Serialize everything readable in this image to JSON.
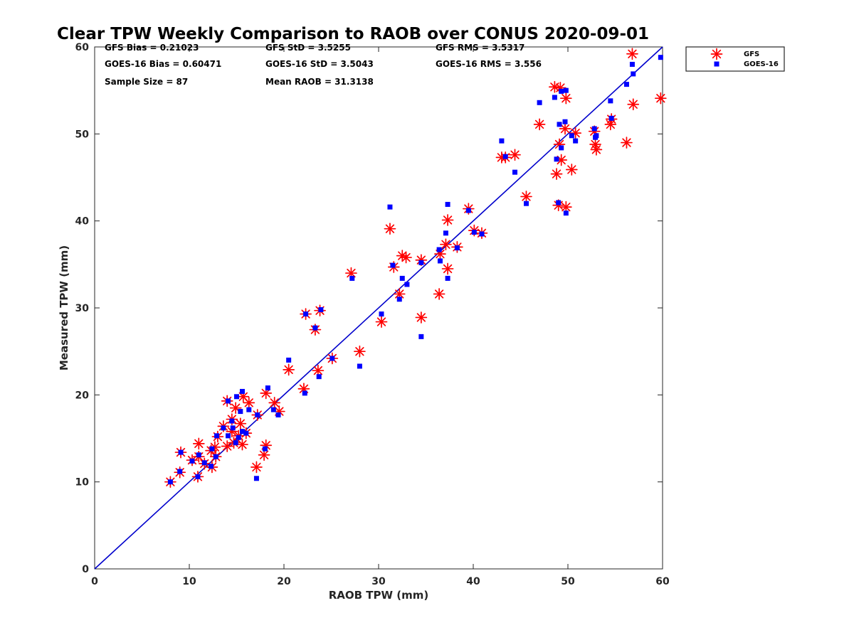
{
  "chart_data": {
    "type": "scatter",
    "title": "Clear TPW Weekly Comparison to RAOB over CONUS 2020-09-01",
    "xlabel": "RAOB TPW (mm)",
    "ylabel": "Measured TPW (mm)",
    "xlim": [
      0,
      60
    ],
    "ylim": [
      0,
      60
    ],
    "xticks": [
      "0",
      "10",
      "20",
      "30",
      "40",
      "50",
      "60"
    ],
    "yticks": [
      "0",
      "10",
      "20",
      "30",
      "40",
      "50",
      "60"
    ],
    "grid": false,
    "legend_position": "outside-top-right",
    "reference_line": {
      "x": [
        0,
        60
      ],
      "y": [
        0,
        60
      ],
      "color": "#0000cc"
    },
    "stats": [
      "GFS Bias = 0.21023",
      "GFS StD = 3.5255",
      "GFS RMS = 3.5317",
      "GOES-16 Bias = 0.60471",
      "GOES-16 StD = 3.5043",
      "GOES-16 RMS = 3.556",
      "Sample Size = 87",
      "Mean RAOB = 31.3138"
    ],
    "series": [
      {
        "name": "GFS",
        "marker": "asterisk",
        "color": "#ff0000",
        "points": [
          [
            8.0,
            10.0
          ],
          [
            9.0,
            11.1
          ],
          [
            9.1,
            13.4
          ],
          [
            10.3,
            12.5
          ],
          [
            10.9,
            10.6
          ],
          [
            11.0,
            14.4
          ],
          [
            11.0,
            12.9
          ],
          [
            11.6,
            12.1
          ],
          [
            12.3,
            13.6
          ],
          [
            12.4,
            11.7
          ],
          [
            12.7,
            14.0
          ],
          [
            12.8,
            12.9
          ],
          [
            13.0,
            15.2
          ],
          [
            13.6,
            16.4
          ],
          [
            14.0,
            14.1
          ],
          [
            14.0,
            19.3
          ],
          [
            14.5,
            17.2
          ],
          [
            14.5,
            15.8
          ],
          [
            14.7,
            14.5
          ],
          [
            14.9,
            18.5
          ],
          [
            15.2,
            15.3
          ],
          [
            15.4,
            16.7
          ],
          [
            15.6,
            14.3
          ],
          [
            15.7,
            19.8
          ],
          [
            16.0,
            15.6
          ],
          [
            16.3,
            19.1
          ],
          [
            17.1,
            11.7
          ],
          [
            17.2,
            17.7
          ],
          [
            17.9,
            13.1
          ],
          [
            18.1,
            14.2
          ],
          [
            18.1,
            20.2
          ],
          [
            19.0,
            19.1
          ],
          [
            19.5,
            18.1
          ],
          [
            20.5,
            22.9
          ],
          [
            22.1,
            20.7
          ],
          [
            22.3,
            29.3
          ],
          [
            23.3,
            27.5
          ],
          [
            23.6,
            22.8
          ],
          [
            23.8,
            29.7
          ],
          [
            25.1,
            24.2
          ],
          [
            27.1,
            34.0
          ],
          [
            28.0,
            25.0
          ],
          [
            30.3,
            28.4
          ],
          [
            31.2,
            39.1
          ],
          [
            31.6,
            34.7
          ],
          [
            32.2,
            31.6
          ],
          [
            32.5,
            36.0
          ],
          [
            32.9,
            35.8
          ],
          [
            34.5,
            35.5
          ],
          [
            34.5,
            28.9
          ],
          [
            36.4,
            31.6
          ],
          [
            36.5,
            36.2
          ],
          [
            37.1,
            37.3
          ],
          [
            37.3,
            34.5
          ],
          [
            37.3,
            40.1
          ],
          [
            38.3,
            37.0
          ],
          [
            39.5,
            41.4
          ],
          [
            40.1,
            38.9
          ],
          [
            40.9,
            38.6
          ],
          [
            43.0,
            47.3
          ],
          [
            43.4,
            47.3
          ],
          [
            44.4,
            47.6
          ],
          [
            45.6,
            42.8
          ],
          [
            47.0,
            51.1
          ],
          [
            48.6,
            55.4
          ],
          [
            48.8,
            45.4
          ],
          [
            49.0,
            41.8
          ],
          [
            49.1,
            48.8
          ],
          [
            49.2,
            55.3
          ],
          [
            49.3,
            47.0
          ],
          [
            49.7,
            50.6
          ],
          [
            49.8,
            41.6
          ],
          [
            49.8,
            54.1
          ],
          [
            50.4,
            45.9
          ],
          [
            50.8,
            50.1
          ],
          [
            52.8,
            50.3
          ],
          [
            52.9,
            48.8
          ],
          [
            53.0,
            48.2
          ],
          [
            54.5,
            51.1
          ],
          [
            54.6,
            51.7
          ],
          [
            56.2,
            49.0
          ],
          [
            56.8,
            59.2
          ],
          [
            56.9,
            53.4
          ],
          [
            59.8,
            54.1
          ]
        ]
      },
      {
        "name": "GOES-16",
        "marker": "square",
        "color": "#0000ff",
        "points": [
          [
            8.0,
            10.0
          ],
          [
            9.0,
            11.2
          ],
          [
            9.1,
            13.4
          ],
          [
            10.3,
            12.4
          ],
          [
            10.9,
            10.6
          ],
          [
            11.0,
            13.1
          ],
          [
            11.6,
            12.2
          ],
          [
            12.3,
            11.8
          ],
          [
            12.4,
            13.8
          ],
          [
            12.8,
            12.9
          ],
          [
            12.9,
            15.3
          ],
          [
            13.6,
            16.2
          ],
          [
            14.1,
            15.3
          ],
          [
            14.1,
            19.3
          ],
          [
            14.5,
            17.0
          ],
          [
            14.6,
            16.2
          ],
          [
            14.9,
            14.5
          ],
          [
            15.0,
            19.8
          ],
          [
            15.2,
            15.1
          ],
          [
            15.4,
            18.1
          ],
          [
            15.6,
            20.4
          ],
          [
            15.6,
            15.8
          ],
          [
            16.0,
            15.6
          ],
          [
            16.3,
            18.3
          ],
          [
            17.1,
            10.4
          ],
          [
            17.2,
            17.7
          ],
          [
            18.0,
            13.8
          ],
          [
            18.3,
            20.8
          ],
          [
            18.9,
            18.3
          ],
          [
            19.4,
            17.7
          ],
          [
            20.5,
            24.0
          ],
          [
            22.2,
            20.2
          ],
          [
            22.3,
            29.3
          ],
          [
            23.3,
            27.7
          ],
          [
            23.7,
            22.1
          ],
          [
            23.9,
            29.8
          ],
          [
            25.1,
            24.2
          ],
          [
            27.2,
            33.4
          ],
          [
            28.0,
            23.3
          ],
          [
            30.3,
            29.3
          ],
          [
            31.2,
            41.6
          ],
          [
            31.5,
            34.9
          ],
          [
            32.2,
            31.0
          ],
          [
            32.5,
            33.4
          ],
          [
            33.0,
            32.7
          ],
          [
            34.5,
            35.2
          ],
          [
            34.5,
            26.7
          ],
          [
            36.4,
            36.7
          ],
          [
            36.5,
            35.4
          ],
          [
            37.1,
            38.6
          ],
          [
            37.3,
            33.4
          ],
          [
            37.3,
            41.9
          ],
          [
            38.3,
            36.9
          ],
          [
            39.5,
            41.2
          ],
          [
            40.1,
            38.7
          ],
          [
            40.9,
            38.5
          ],
          [
            43.0,
            49.2
          ],
          [
            43.4,
            47.4
          ],
          [
            44.4,
            45.6
          ],
          [
            45.6,
            42.0
          ],
          [
            47.0,
            53.6
          ],
          [
            48.6,
            54.2
          ],
          [
            48.8,
            47.1
          ],
          [
            49.0,
            42.1
          ],
          [
            49.1,
            51.1
          ],
          [
            49.3,
            48.4
          ],
          [
            49.3,
            54.9
          ],
          [
            49.7,
            51.4
          ],
          [
            49.8,
            55.0
          ],
          [
            49.8,
            40.9
          ],
          [
            50.4,
            49.8
          ],
          [
            50.8,
            49.2
          ],
          [
            52.8,
            50.6
          ],
          [
            52.9,
            49.6
          ],
          [
            53.0,
            49.8
          ],
          [
            54.5,
            53.8
          ],
          [
            54.6,
            51.8
          ],
          [
            56.2,
            55.7
          ],
          [
            56.8,
            58.0
          ],
          [
            56.9,
            56.9
          ],
          [
            59.8,
            58.8
          ]
        ]
      }
    ]
  }
}
